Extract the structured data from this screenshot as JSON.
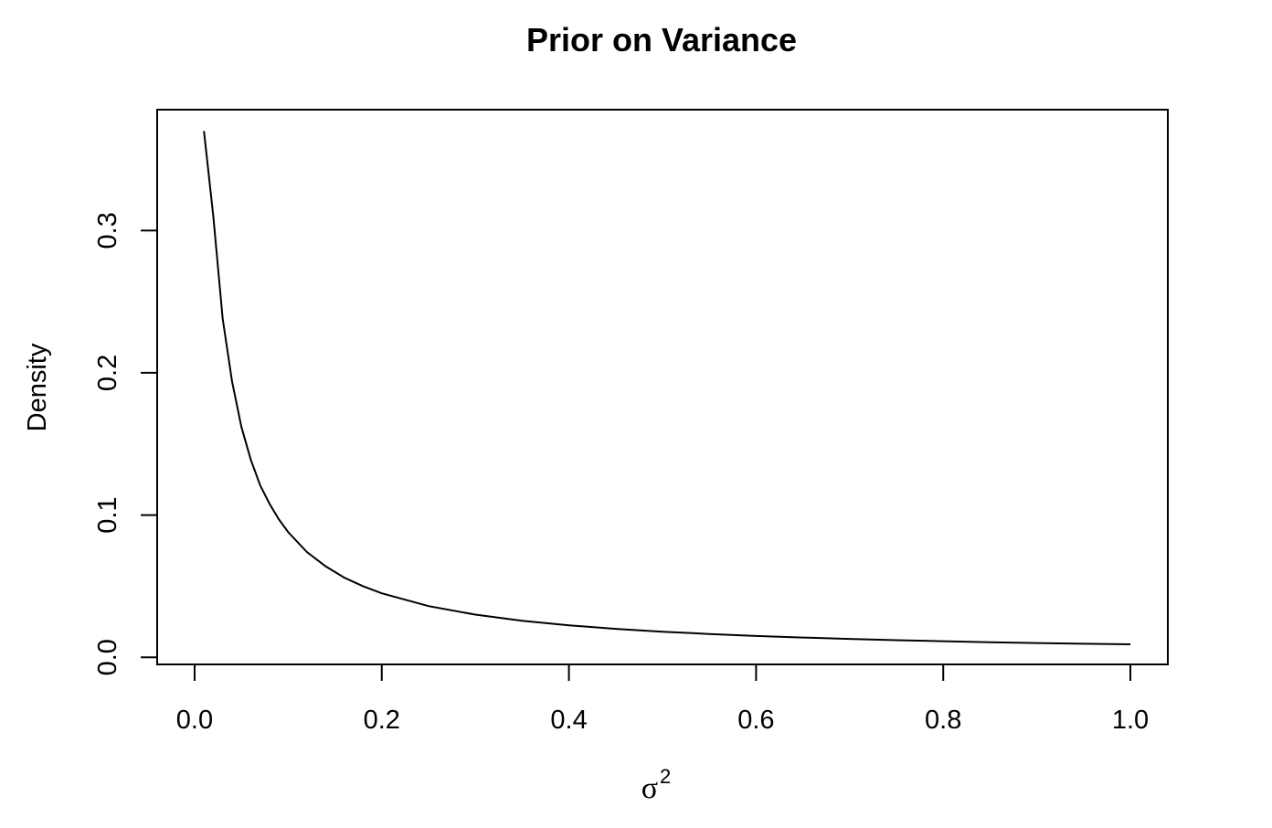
{
  "chart_data": {
    "type": "line",
    "title": "Prior on Variance",
    "xlabel": "σ",
    "xlabel_superscript": "2",
    "ylabel": "Density",
    "xlim": [
      -0.04,
      1.04
    ],
    "ylim": [
      -0.005,
      0.385
    ],
    "x_ticks": [
      0.0,
      0.2,
      0.4,
      0.6,
      0.8,
      1.0
    ],
    "x_tick_labels": [
      "0.0",
      "0.2",
      "0.4",
      "0.6",
      "0.8",
      "1.0"
    ],
    "y_ticks": [
      0.0,
      0.1,
      0.2,
      0.3
    ],
    "y_tick_labels": [
      "0.0",
      "0.1",
      "0.2",
      "0.3"
    ],
    "grid": false,
    "series": [
      {
        "color": "#000000",
        "x": [
          0.01,
          0.02,
          0.03,
          0.04,
          0.05,
          0.06,
          0.07,
          0.08,
          0.09,
          0.1,
          0.12,
          0.14,
          0.16,
          0.18,
          0.2,
          0.25,
          0.3,
          0.35,
          0.4,
          0.45,
          0.5,
          0.55,
          0.6,
          0.65,
          0.7,
          0.75,
          0.8,
          0.85,
          0.9,
          0.95,
          1.0
        ],
        "y": [
          0.37,
          0.31,
          0.238,
          0.194,
          0.162,
          0.139,
          0.121,
          0.108,
          0.097,
          0.088,
          0.074,
          0.064,
          0.056,
          0.05,
          0.045,
          0.036,
          0.03,
          0.0257,
          0.0225,
          0.02,
          0.018,
          0.0164,
          0.015,
          0.0139,
          0.0129,
          0.012,
          0.0113,
          0.0106,
          0.01,
          0.0095,
          0.0091
        ]
      }
    ]
  }
}
